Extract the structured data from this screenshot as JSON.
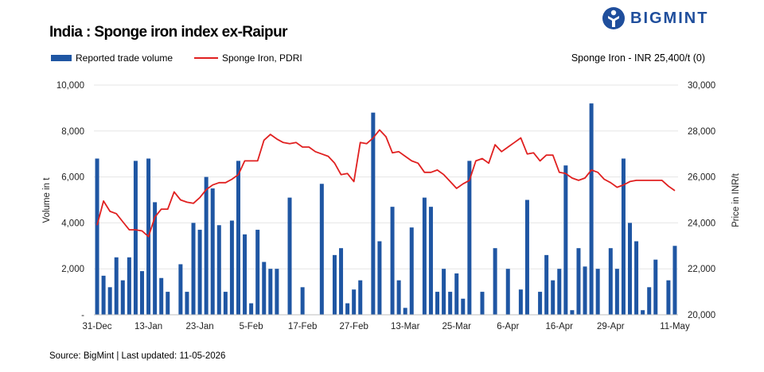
{
  "header": {
    "title": "India : Sponge iron index ex-Raipur",
    "logo_text": "BIGMINT",
    "price_note": "Sponge Iron - INR 25,400/t (0)"
  },
  "footer": {
    "source": "Source: BigMint | Last updated: 11-05-2026"
  },
  "colors": {
    "bars": "#1f56a3",
    "line": "#e02020",
    "logo": "#1f4e9c"
  },
  "chart_data": {
    "type": "bar+line",
    "series": [
      {
        "name": "Reported trade volume",
        "type": "bar",
        "axis": "left",
        "values": [
          6800,
          1700,
          1200,
          2500,
          1500,
          2500,
          6700,
          1900,
          6800,
          4900,
          1600,
          1000,
          0,
          2200,
          1000,
          4000,
          3700,
          6000,
          5500,
          3900,
          1000,
          4100,
          6700,
          3500,
          500,
          3700,
          2300,
          2000,
          2000,
          0,
          5100,
          0,
          1200,
          0,
          0,
          5700,
          0,
          2600,
          2900,
          500,
          1100,
          1500,
          0,
          8800,
          3200,
          0,
          4700,
          1500,
          300,
          3800,
          0,
          5100,
          4700,
          1000,
          2000,
          1000,
          1800,
          700,
          6700,
          0,
          1000,
          0,
          2900,
          0,
          2000,
          0,
          1100,
          5000,
          0,
          1000,
          2600,
          1500,
          2000,
          6500,
          200,
          2900,
          2100,
          9200,
          2000,
          0,
          2900,
          2000,
          6800,
          4000,
          3200,
          200,
          1200,
          2400,
          0,
          1500,
          3000
        ]
      },
      {
        "name": "Sponge Iron, PDRI",
        "type": "line",
        "axis": "right",
        "values": [
          23900,
          24950,
          24500,
          24400,
          24050,
          23700,
          23700,
          23650,
          23400,
          24250,
          24600,
          24600,
          25350,
          25000,
          24900,
          24850,
          25100,
          25450,
          25650,
          25750,
          25750,
          25900,
          26100,
          26700,
          26700,
          26700,
          27600,
          27850,
          27650,
          27500,
          27450,
          27500,
          27300,
          27300,
          27100,
          27000,
          26900,
          26600,
          26100,
          26150,
          25800,
          27500,
          27450,
          27700,
          28050,
          27750,
          27050,
          27100,
          26900,
          26700,
          26600,
          26200,
          26200,
          26300,
          26100,
          25800,
          25500,
          25700,
          25850,
          26700,
          26800,
          26600,
          27400,
          27100,
          27300,
          27500,
          27700,
          27000,
          27050,
          26700,
          26950,
          26950,
          26200,
          26150,
          25950,
          25850,
          25950,
          26300,
          26200,
          25900,
          25750,
          25550,
          25650,
          25800,
          25850,
          25850,
          25850,
          25850,
          25850,
          25600,
          25400
        ]
      }
    ],
    "x_tick_labels": [
      "31-Dec",
      "13-Jan",
      "23-Jan",
      "5-Feb",
      "17-Feb",
      "27-Feb",
      "13-Mar",
      "25-Mar",
      "6-Apr",
      "16-Apr",
      "29-Apr",
      "11-May"
    ],
    "x_tick_positions": [
      0,
      8,
      16,
      24,
      32,
      40,
      48,
      56,
      64,
      72,
      80,
      90
    ],
    "y_left": {
      "label": "Volume in t",
      "min": 0,
      "max": 10000,
      "ticks": [
        "-",
        "2,000",
        "4,000",
        "6,000",
        "8,000",
        "10,000"
      ]
    },
    "y_right": {
      "label": "Price in INR/t",
      "min": 20000,
      "max": 30000,
      "ticks": [
        "20,000",
        "22,000",
        "24,000",
        "26,000",
        "28,000",
        "30,000"
      ]
    },
    "grid": true,
    "legend_position": "top-left"
  }
}
